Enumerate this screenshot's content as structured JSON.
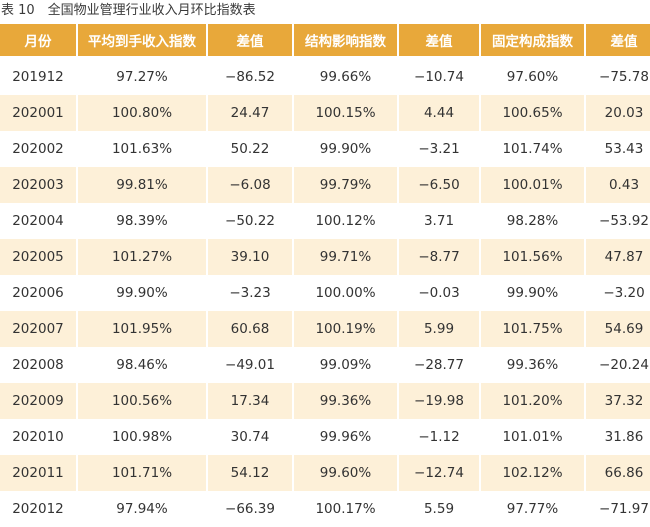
{
  "caption": "表 10　全国物业管理行业收入月环比指数表",
  "headers": [
    "月份",
    "平均到手收入指数",
    "差值",
    "结构影响指数",
    "差值",
    "固定构成指数",
    "差值"
  ],
  "rows": [
    [
      "201912",
      "97.27%",
      "−86.52",
      "99.66%",
      "−10.74",
      "97.60%",
      "−75.78"
    ],
    [
      "202001",
      "100.80%",
      "24.47",
      "100.15%",
      "4.44",
      "100.65%",
      "20.03"
    ],
    [
      "202002",
      "101.63%",
      "50.22",
      "99.90%",
      "−3.21",
      "101.74%",
      "53.43"
    ],
    [
      "202003",
      "99.81%",
      "−6.08",
      "99.79%",
      "−6.50",
      "100.01%",
      "0.43"
    ],
    [
      "202004",
      "98.39%",
      "−50.22",
      "100.12%",
      "3.71",
      "98.28%",
      "−53.92"
    ],
    [
      "202005",
      "101.27%",
      "39.10",
      "99.71%",
      "−8.77",
      "101.56%",
      "47.87"
    ],
    [
      "202006",
      "99.90%",
      "−3.23",
      "100.00%",
      "−0.03",
      "99.90%",
      "−3.20"
    ],
    [
      "202007",
      "101.95%",
      "60.68",
      "100.19%",
      "5.99",
      "101.75%",
      "54.69"
    ],
    [
      "202008",
      "98.46%",
      "−49.01",
      "99.09%",
      "−28.77",
      "99.36%",
      "−20.24"
    ],
    [
      "202009",
      "100.56%",
      "17.34",
      "99.36%",
      "−19.98",
      "101.20%",
      "37.32"
    ],
    [
      "202010",
      "100.98%",
      "30.74",
      "99.96%",
      "−1.12",
      "101.01%",
      "31.86"
    ],
    [
      "202011",
      "101.71%",
      "54.12",
      "99.60%",
      "−12.74",
      "102.12%",
      "66.86"
    ],
    [
      "202012",
      "97.94%",
      "−66.39",
      "100.17%",
      "5.59",
      "97.77%",
      "−71.97"
    ]
  ],
  "colors": {
    "header": "#e8a83a",
    "stripe": "#fdf0d8"
  }
}
